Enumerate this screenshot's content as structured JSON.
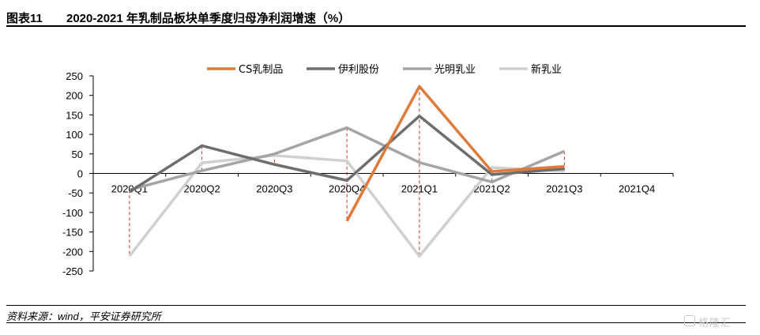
{
  "header": {
    "figure_number": "图表11",
    "title": "2020-2021 年乳制品板块单季度归母净利润增速（%）"
  },
  "footer": {
    "source": "资料来源：wind，平安证券研究所"
  },
  "watermark": {
    "text": "格隆汇",
    "logo": "gelonghui-logo"
  },
  "chart_data": {
    "type": "line",
    "title": "",
    "xlabel": "",
    "ylabel": "",
    "categories": [
      "2020Q1",
      "2020Q2",
      "2020Q3",
      "2020Q4",
      "2021Q1",
      "2021Q2",
      "2021Q3",
      "2021Q4"
    ],
    "ylim": [
      -250,
      250
    ],
    "yticks": [
      250,
      200,
      150,
      100,
      50,
      0,
      -50,
      -100,
      -150,
      -200,
      -250
    ],
    "grid": false,
    "legend_position": "top",
    "series": [
      {
        "name": "CS乳制品",
        "color": "#E07A3A",
        "values": [
          null,
          null,
          null,
          -122,
          223,
          5,
          18,
          null
        ]
      },
      {
        "name": "伊利股份",
        "color": "#6E6E6E",
        "values": [
          -47,
          71,
          23,
          -18,
          147,
          -3,
          12,
          null
        ]
      },
      {
        "name": "光明乳业",
        "color": "#A5A5A5",
        "values": [
          -42,
          7,
          50,
          117,
          28,
          -22,
          57,
          null
        ]
      },
      {
        "name": "新乳业",
        "color": "#D0D0D0",
        "values": [
          -212,
          27,
          46,
          32,
          -212,
          15,
          6,
          null
        ]
      }
    ],
    "reference_lines": {
      "color": "#C0392B",
      "style": "dashed",
      "categories": [
        "2020Q1",
        "2020Q2",
        "2020Q3",
        "2020Q4",
        "2021Q1",
        "2021Q2",
        "2021Q3"
      ]
    }
  }
}
